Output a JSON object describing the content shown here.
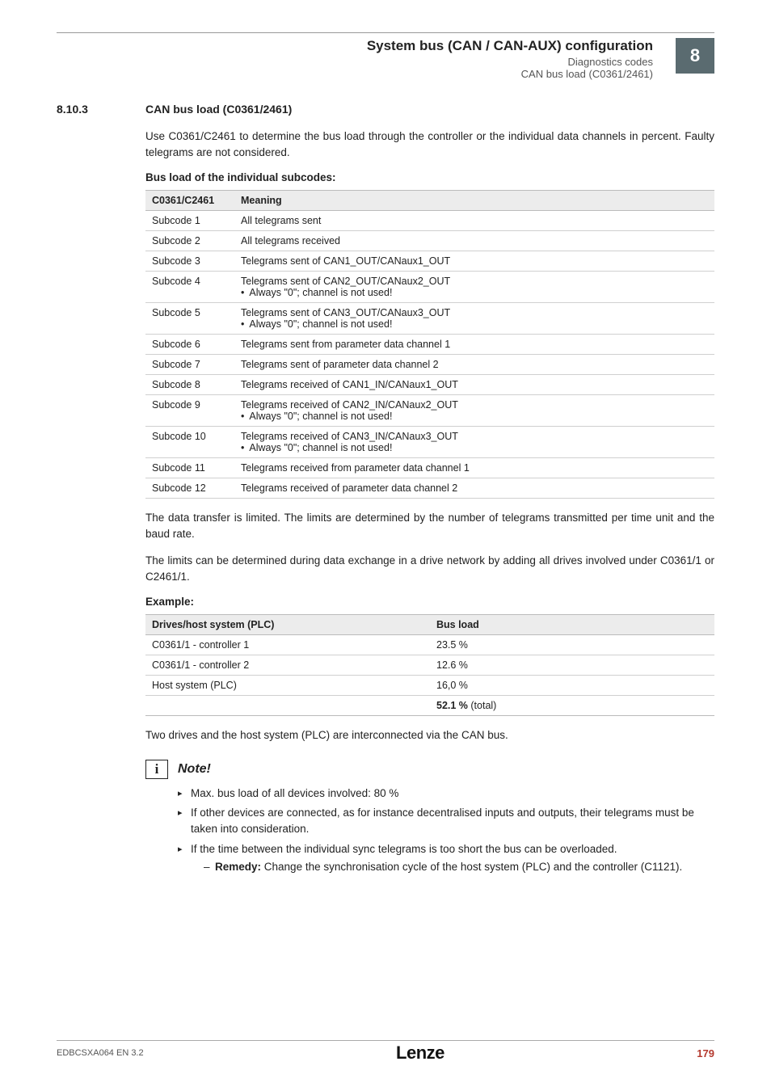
{
  "header": {
    "title": "System bus (CAN / CAN-AUX) configuration",
    "sub1": "Diagnostics codes",
    "sub2": "CAN bus load (C0361/2461)",
    "badge": "8"
  },
  "section": {
    "num": "8.10.3",
    "title": "CAN bus load (C0361/2461)"
  },
  "intro": "Use C0361/C2461 to determine the bus load through the controller or the individual data channels in percent. Faulty telegrams are not considered.",
  "tbl_title": "Bus load of the individual subcodes:",
  "tbl_main": {
    "h1": "C0361/C2461",
    "h2": "Meaning",
    "rows": [
      {
        "c1": "Subcode 1",
        "c2": "All telegrams sent",
        "bullet": null
      },
      {
        "c1": "Subcode 2",
        "c2": "All telegrams received",
        "bullet": null
      },
      {
        "c1": "Subcode 3",
        "c2": "Telegrams sent of CAN1_OUT/CANaux1_OUT",
        "bullet": null
      },
      {
        "c1": "Subcode 4",
        "c2": "Telegrams sent of CAN2_OUT/CANaux2_OUT",
        "bullet": "Always \"0\"; channel is not used!"
      },
      {
        "c1": "Subcode 5",
        "c2": "Telegrams sent of CAN3_OUT/CANaux3_OUT",
        "bullet": "Always \"0\"; channel is not used!"
      },
      {
        "c1": "Subcode 6",
        "c2": "Telegrams sent from parameter data channel 1",
        "bullet": null
      },
      {
        "c1": "Subcode 7",
        "c2": "Telegrams sent of parameter data channel 2",
        "bullet": null
      },
      {
        "c1": "Subcode 8",
        "c2": "Telegrams received of CAN1_IN/CANaux1_OUT",
        "bullet": null
      },
      {
        "c1": "Subcode 9",
        "c2": "Telegrams received of CAN2_IN/CANaux2_OUT",
        "bullet": "Always \"0\"; channel is not used!"
      },
      {
        "c1": "Subcode 10",
        "c2": "Telegrams received of CAN3_IN/CANaux3_OUT",
        "bullet": "Always \"0\"; channel is not used!"
      },
      {
        "c1": "Subcode 11",
        "c2": "Telegrams received from parameter data channel 1",
        "bullet": null
      },
      {
        "c1": "Subcode 12",
        "c2": "Telegrams received of parameter data channel 2",
        "bullet": null
      }
    ]
  },
  "para1": "The data transfer is limited. The limits are determined by the number of telegrams transmitted per time unit and the baud rate.",
  "para2": "The limits can be determined during data exchange in a drive network by adding all drives involved under C0361/1 or C2461/1.",
  "example_label": "Example:",
  "tbl_example": {
    "h1": "Drives/host system (PLC)",
    "h2": "Bus load",
    "rows": [
      {
        "c1": "C0361/1 - controller 1",
        "c2": "23.5 %"
      },
      {
        "c1": "C0361/1 - controller 2",
        "c2": "12.6 %"
      },
      {
        "c1": "Host system (PLC)",
        "c2": "16,0 %"
      }
    ],
    "total_label": "52.1 %",
    "total_suffix": " (total)"
  },
  "para3": "Two drives and the host system (PLC) are interconnected via the CAN bus.",
  "note": {
    "title": "Note!",
    "items": [
      {
        "text": "Max. bus load of all devices involved: 80 %"
      },
      {
        "text": "If other devices are connected, as for instance decentralised inputs and outputs, their telegrams must be taken into consideration."
      },
      {
        "text": "If the time between the individual sync telegrams is too short the bus can be overloaded.",
        "sub_prefix": "Remedy:",
        "sub_text": " Change the synchronisation cycle of the host system (PLC) and the controller (C1121)."
      }
    ]
  },
  "footer": {
    "left": "EDBCSXA064 EN 3.2",
    "logo": "Lenze",
    "page": "179"
  }
}
